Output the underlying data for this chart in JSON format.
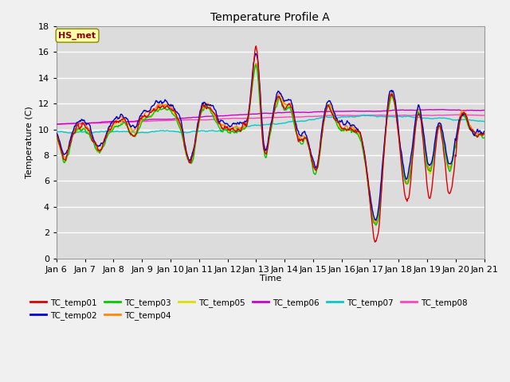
{
  "title": "Temperature Profile A",
  "xlabel": "Time",
  "ylabel": "Temperature (C)",
  "ylim": [
    0,
    18
  ],
  "background_color": "#dcdcdc",
  "grid_color": "#ffffff",
  "series_colors": {
    "TC_temp01": "#dd0000",
    "TC_temp02": "#0000cc",
    "TC_temp03": "#00cc00",
    "TC_temp04": "#ff8800",
    "TC_temp05": "#dddd00",
    "TC_temp06": "#cc00cc",
    "TC_temp07": "#00cccc",
    "TC_temp08": "#ff44bb"
  },
  "annotation_text": "HS_met",
  "annotation_color": "#8b0000",
  "annotation_bg": "#ffffaa",
  "tick_labels": [
    "Jan 6",
    "Jan 7",
    "Jan 8",
    "Jan 9",
    "Jan 10",
    "Jan 11",
    "Jan 12",
    "Jan 13",
    "Jan 14",
    "Jan 15",
    "Jan 16",
    "Jan 17",
    "Jan 18",
    "Jan 19",
    "Jan 20",
    "Jan 21"
  ],
  "line_width": 1.0
}
